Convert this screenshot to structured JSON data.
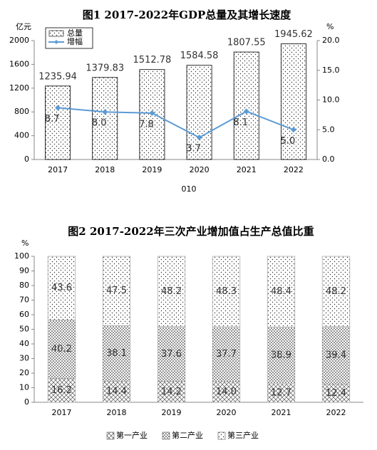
{
  "chart_data": [
    {
      "type": "bar_line",
      "title": "图1 2017-2022年GDP总量及其增长速度",
      "y_label": "亿元",
      "y2_label": "%",
      "categories": [
        "2017",
        "2018",
        "2019",
        "2020",
        "2021",
        "2022"
      ],
      "series": [
        {
          "name": "总量",
          "color": "#000000",
          "pattern": "sparse-dots",
          "values": [
            1235.94,
            1379.83,
            1512.78,
            1584.58,
            1807.55,
            1945.62
          ]
        },
        {
          "name": "增幅",
          "color": "#5b9bd5",
          "axis": "y2",
          "values": [
            8.7,
            8.0,
            7.8,
            3.7,
            8.1,
            5.0
          ],
          "value_labels": [
            "8.7",
            "8.0",
            "7.8",
            "3.7",
            "8.1",
            "5.0"
          ]
        }
      ],
      "ylim": [
        0,
        2000
      ],
      "yticks": [
        0,
        400,
        800,
        1200,
        1600,
        2000
      ],
      "y2lim": [
        0,
        20
      ],
      "y2ticks": [
        {
          "value": 0,
          "label": "0.0"
        },
        {
          "value": 5,
          "label": "5.0"
        },
        {
          "value": 10,
          "label": "10.0"
        },
        {
          "value": 15,
          "label": "15.0"
        },
        {
          "value": 20,
          "label": "20.0"
        }
      ],
      "legend": "top-left",
      "footnote": "010"
    },
    {
      "type": "stacked_bar",
      "title": "图2 2017-2022年三次产业增加值占生产总值比重",
      "y_label": "%",
      "categories": [
        "2017",
        "2018",
        "2019",
        "2020",
        "2021",
        "2022"
      ],
      "series": [
        {
          "name": "第一产业",
          "color": "#000000",
          "pattern": "crosshatch",
          "values": [
            16.2,
            14.4,
            14.2,
            14.0,
            12.7,
            12.4
          ],
          "value_labels": [
            "16.2",
            "14.4",
            "14.2",
            "14.0",
            "12.7",
            "12.4"
          ]
        },
        {
          "name": "第二产业",
          "color": "#000000",
          "pattern": "dense-dots",
          "values": [
            40.2,
            38.1,
            37.6,
            37.7,
            38.9,
            39.4
          ]
        },
        {
          "name": "第三产业",
          "color": "#000000",
          "pattern": "sparse-dots",
          "values": [
            43.6,
            47.5,
            48.2,
            48.3,
            48.4,
            48.2
          ]
        }
      ],
      "ylim": [
        0,
        100
      ],
      "yticks": [
        0,
        10,
        20,
        30,
        40,
        50,
        60,
        70,
        80,
        90,
        100
      ],
      "legend": "bottom"
    }
  ]
}
